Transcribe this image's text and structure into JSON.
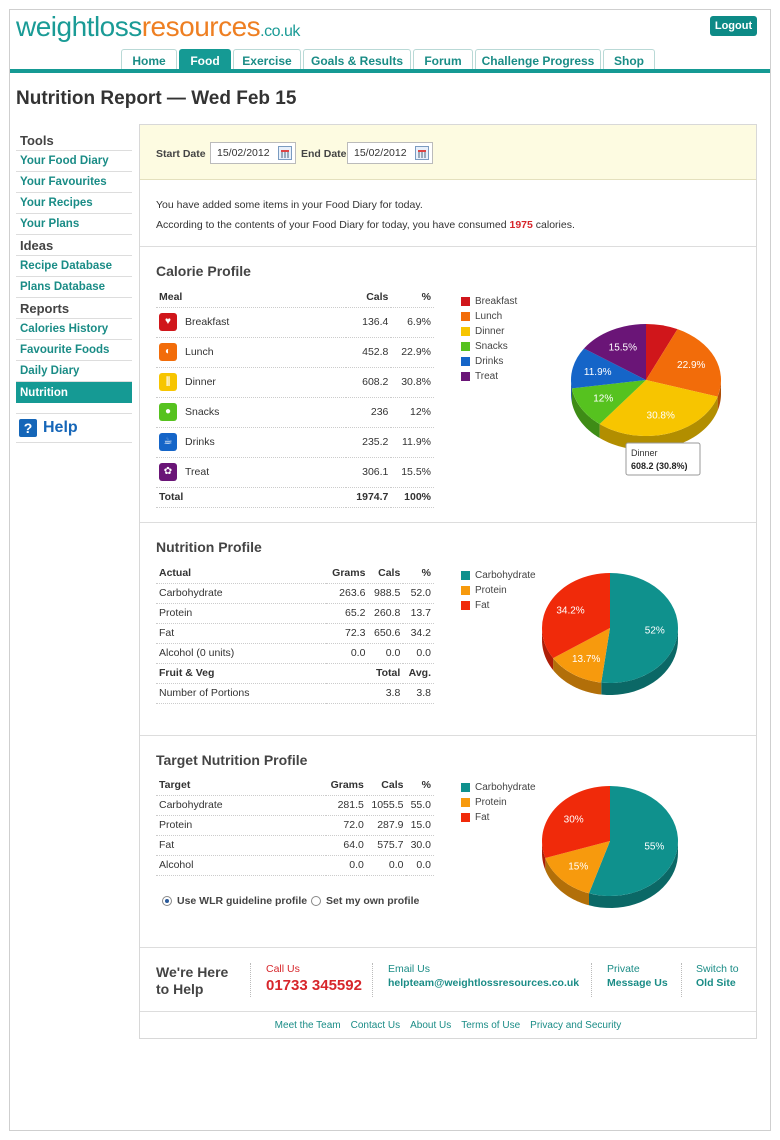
{
  "header": {
    "logo_part1": "weightloss",
    "logo_part2": "resources",
    "logo_part3": ".co.uk",
    "logout_label": "Logout",
    "tabs": [
      "Home",
      "Food",
      "Exercise",
      "Goals & Results",
      "Forum",
      "Challenge Progress",
      "Shop"
    ],
    "active_tab": "Food"
  },
  "page_title": "Nutrition Report — Wed Feb 15",
  "sidebar": {
    "tools_heading": "Tools",
    "tools": [
      "Your Food Diary",
      "Your Favourites",
      "Your Recipes",
      "Your Plans"
    ],
    "ideas_heading": "Ideas",
    "ideas": [
      "Recipe Database",
      "Plans Database"
    ],
    "reports_heading": "Reports",
    "reports": [
      "Calories History",
      "Favourite Foods",
      "Daily Diary",
      "Nutrition"
    ],
    "active_item": "Nutrition",
    "help_label": "Help"
  },
  "dates": {
    "start_label": "Start Date",
    "start_value": "15/02/2012",
    "end_label": "End Date",
    "end_value": "15/02/2012"
  },
  "message": {
    "line1": "You have added some items in your Food Diary for today.",
    "line2_pre": "According to the contents of your Food Diary for today, you have consumed ",
    "calories": "1975",
    "line2_post": " calories."
  },
  "calorie_profile": {
    "heading": "Calorie Profile",
    "columns": [
      "Meal",
      "Cals",
      "%"
    ],
    "rows": [
      {
        "meal": "Breakfast",
        "cals": "136.4",
        "pct": "6.9%",
        "color": "#d0161b"
      },
      {
        "meal": "Lunch",
        "cals": "452.8",
        "pct": "22.9%",
        "color": "#f26c0a"
      },
      {
        "meal": "Dinner",
        "cals": "608.2",
        "pct": "30.8%",
        "color": "#f7c500"
      },
      {
        "meal": "Snacks",
        "cals": "236",
        "pct": "12%",
        "color": "#56c21f"
      },
      {
        "meal": "Drinks",
        "cals": "235.2",
        "pct": "11.9%",
        "color": "#1565c8"
      },
      {
        "meal": "Treat",
        "cals": "306.1",
        "pct": "15.5%",
        "color": "#6a1577"
      }
    ],
    "total_label": "Total",
    "total_cals": "1974.7",
    "total_pct": "100%",
    "tooltip_title": "Dinner",
    "tooltip_value": "608.2 (30.8%)"
  },
  "nutrition_profile": {
    "heading": "Nutrition Profile",
    "columns": [
      "Actual",
      "Grams",
      "Cals",
      "%"
    ],
    "rows": [
      {
        "name": "Carbohydrate",
        "grams": "263.6",
        "cals": "988.5",
        "pct": "52.0"
      },
      {
        "name": "Protein",
        "grams": "65.2",
        "cals": "260.8",
        "pct": "13.7"
      },
      {
        "name": "Fat",
        "grams": "72.3",
        "cals": "650.6",
        "pct": "34.2"
      },
      {
        "name": "Alcohol (0 units)",
        "grams": "0.0",
        "cals": "0.0",
        "pct": "0.0"
      }
    ],
    "fv_columns": [
      "Fruit & Veg",
      "Total",
      "Avg."
    ],
    "fv_row": {
      "name": "Number of Portions",
      "total": "3.8",
      "avg": "3.8"
    },
    "chart": [
      {
        "label": "Carbohydrate",
        "value": 52,
        "text": "52%",
        "color": "#0f918d"
      },
      {
        "label": "Protein",
        "value": 13.7,
        "text": "13.7%",
        "color": "#f79a0d"
      },
      {
        "label": "Fat",
        "value": 34.2,
        "text": "34.2%",
        "color": "#f02a0a"
      }
    ]
  },
  "target_profile": {
    "heading": "Target Nutrition Profile",
    "columns": [
      "Target",
      "Grams",
      "Cals",
      "%"
    ],
    "rows": [
      {
        "name": "Carbohydrate",
        "grams": "281.5",
        "cals": "1055.5",
        "pct": "55.0"
      },
      {
        "name": "Protein",
        "grams": "72.0",
        "cals": "287.9",
        "pct": "15.0"
      },
      {
        "name": "Fat",
        "grams": "64.0",
        "cals": "575.7",
        "pct": "30.0"
      },
      {
        "name": "Alcohol",
        "grams": "0.0",
        "cals": "0.0",
        "pct": "0.0"
      }
    ],
    "chart": [
      {
        "label": "Carbohydrate",
        "value": 55,
        "text": "55%",
        "color": "#0f918d"
      },
      {
        "label": "Protein",
        "value": 15,
        "text": "15%",
        "color": "#f79a0d"
      },
      {
        "label": "Fat",
        "value": 30,
        "text": "30%",
        "color": "#f02a0a"
      }
    ],
    "radio_wlr": "Use WLR guideline profile",
    "radio_own": "Set my own profile"
  },
  "footer": {
    "here_line1": "We're Here",
    "here_line2": "to Help",
    "call_label": "Call Us",
    "phone": "01733 345592",
    "email_label": "Email Us",
    "email": "helpteam@weightlossresources.co.uk",
    "private_label": "Private",
    "message_label": "Message Us",
    "switch_label": "Switch to",
    "old_site": "Old Site",
    "links": [
      "Meet the Team",
      "Contact Us",
      "About Us",
      "Terms of Use",
      "Privacy and Security"
    ]
  },
  "chart_data": [
    {
      "type": "pie",
      "title": "Calorie Profile",
      "categories": [
        "Breakfast",
        "Lunch",
        "Dinner",
        "Snacks",
        "Drinks",
        "Treat"
      ],
      "values": [
        6.9,
        22.9,
        30.8,
        12,
        11.9,
        15.5
      ],
      "legend": "left"
    },
    {
      "type": "pie",
      "title": "Nutrition Profile",
      "categories": [
        "Carbohydrate",
        "Protein",
        "Fat"
      ],
      "values": [
        52,
        13.7,
        34.2
      ],
      "legend": "left"
    },
    {
      "type": "pie",
      "title": "Target Nutrition Profile",
      "categories": [
        "Carbohydrate",
        "Protein",
        "Fat"
      ],
      "values": [
        55,
        15,
        30
      ],
      "legend": "left"
    }
  ]
}
